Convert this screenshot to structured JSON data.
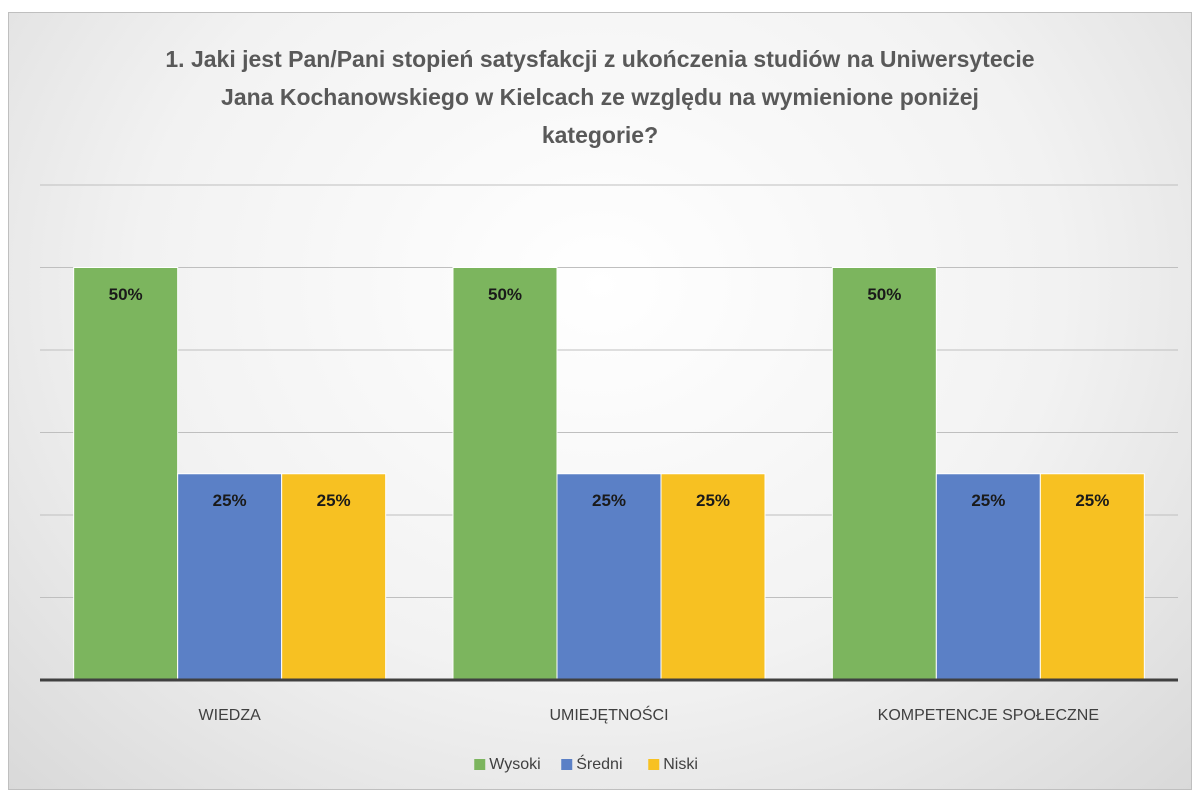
{
  "chart_data": {
    "type": "bar",
    "title": "1. Jaki jest Pan/Pani stopień satysfakcji z ukończenia studiów na Uniwersytecie Jana Kochanowskiego w Kielcach ze względu na wymienione poniżej kategorie?",
    "categories": [
      "WIEDZA",
      "UMIEJĘTNOŚCI",
      "KOMPETENCJE SPOŁECZNE"
    ],
    "series": [
      {
        "name": "Wysoki",
        "color": "#7cb55e",
        "values": [
          50,
          50,
          50
        ],
        "value_labels": [
          "50%",
          "50%",
          "50%"
        ]
      },
      {
        "name": "Średni",
        "color": "#5b80c6",
        "values": [
          25,
          25,
          25
        ],
        "value_labels": [
          "25%",
          "25%",
          "25%"
        ]
      },
      {
        "name": "Niski",
        "color": "#f7c122",
        "values": [
          25,
          25,
          25
        ],
        "value_labels": [
          "25%",
          "25%",
          "25%"
        ]
      }
    ],
    "ylim": [
      0,
      60
    ],
    "yticks": [
      0,
      10,
      20,
      30,
      40,
      50,
      60
    ],
    "grid": true,
    "legend": "bottom"
  }
}
